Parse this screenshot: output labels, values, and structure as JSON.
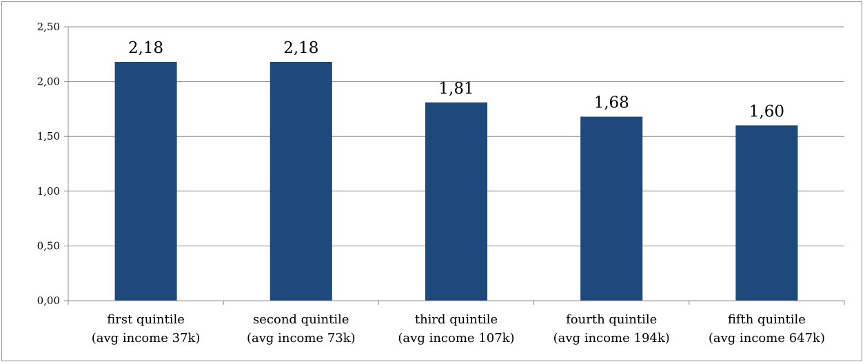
{
  "chart_data": {
    "type": "bar",
    "categories": [
      [
        "first quintile",
        "(avg income 37k)"
      ],
      [
        "second quintile",
        "(avg income 73k)"
      ],
      [
        "third quintile",
        "(avg income 107k)"
      ],
      [
        "fourth quintile",
        "(avg income 194k)"
      ],
      [
        "fifth quintile",
        "(avg income 647k)"
      ]
    ],
    "values": [
      2.18,
      2.18,
      1.81,
      1.68,
      1.6
    ],
    "value_labels": [
      "2,18",
      "2,18",
      "1,81",
      "1,68",
      "1,60"
    ],
    "y_ticks": [
      0,
      0.5,
      1.0,
      1.5,
      2.0,
      2.5
    ],
    "y_tick_labels": [
      "0,00",
      "0,50",
      "1,00",
      "1,50",
      "2,00",
      "2,50"
    ],
    "ylim": [
      0,
      2.5
    ],
    "grid": true,
    "legend": "none",
    "bar_color": "#1f497d",
    "grid_color": "#8c8c8c",
    "title": "",
    "xlabel": "",
    "ylabel": ""
  }
}
